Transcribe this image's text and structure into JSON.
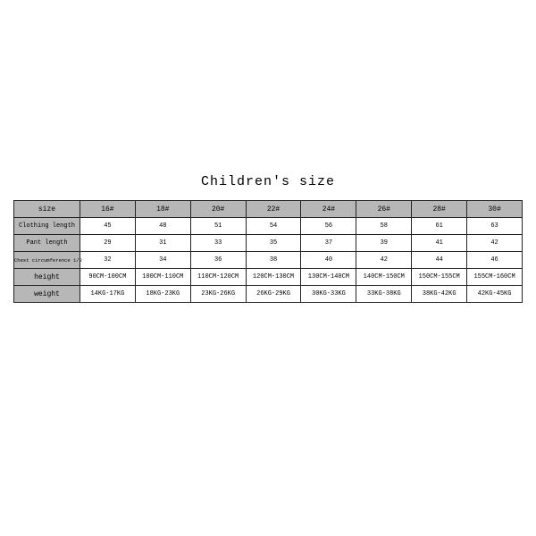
{
  "title": "Children's size",
  "table": {
    "type": "table",
    "background_color": "#ffffff",
    "header_bg": "#b7b7b7",
    "border_color": "#222222",
    "columns": [
      "size",
      "16#",
      "18#",
      "20#",
      "22#",
      "24#",
      "26#",
      "28#",
      "30#"
    ],
    "rows": [
      {
        "label": "Clothing length",
        "cells": [
          "45",
          "48",
          "51",
          "54",
          "56",
          "58",
          "61",
          "63"
        ]
      },
      {
        "label": "Pant length",
        "cells": [
          "29",
          "31",
          "33",
          "35",
          "37",
          "39",
          "41",
          "42"
        ]
      },
      {
        "label": "Chest circumference 1/2",
        "cells": [
          "32",
          "34",
          "36",
          "38",
          "40",
          "42",
          "44",
          "46"
        ]
      },
      {
        "label": "height",
        "cells": [
          "90CM-100CM",
          "100CM-110CM",
          "110CM-120CM",
          "120CM-130CM",
          "130CM-140CM",
          "140CM-150CM",
          "150CM-155CM",
          "155CM-160CM"
        ]
      },
      {
        "label": "weight",
        "cells": [
          "14KG-17KG",
          "18KG-23KG",
          "23KG-26KG",
          "26KG-29KG",
          "30KG-33KG",
          "33KG-38KG",
          "38KG-42KG",
          "42KG-45KG"
        ]
      }
    ],
    "title_fontsize": 15,
    "header_fontsize": 8,
    "cell_fontsize": 7
  }
}
